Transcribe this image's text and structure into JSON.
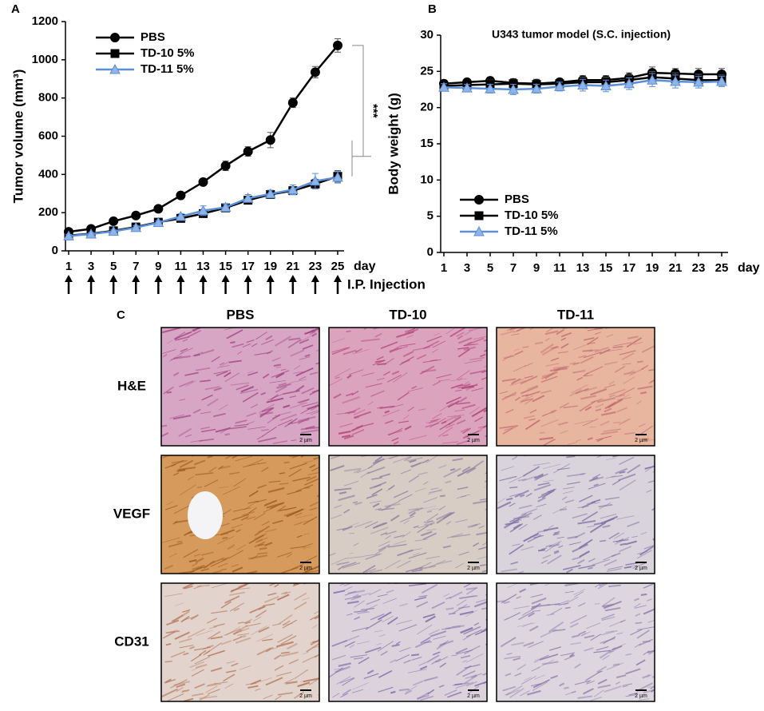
{
  "chart_data": [
    {
      "type": "line",
      "panel_label": "A",
      "ylabel": "Tumor volume (mm³)",
      "xlabel": "day",
      "x": [
        1,
        3,
        5,
        7,
        9,
        11,
        13,
        15,
        17,
        19,
        21,
        23,
        25
      ],
      "xlim": [
        1,
        25
      ],
      "xticks": [
        1,
        3,
        5,
        7,
        9,
        11,
        13,
        15,
        17,
        19,
        21,
        23,
        25
      ],
      "ylim": [
        0,
        1200
      ],
      "yticks": [
        0,
        200,
        400,
        600,
        800,
        1000,
        1200
      ],
      "legend": "upper left",
      "series": [
        {
          "name": "PBS",
          "color": "#000000",
          "marker": "circle",
          "values": [
            100,
            115,
            155,
            185,
            220,
            290,
            360,
            445,
            520,
            580,
            775,
            935,
            1075
          ],
          "errors": [
            10,
            10,
            12,
            12,
            12,
            18,
            15,
            25,
            25,
            40,
            25,
            30,
            35
          ]
        },
        {
          "name": "TD-10 5%",
          "color": "#000000",
          "marker": "square",
          "values": [
            80,
            90,
            105,
            125,
            150,
            170,
            195,
            225,
            265,
            295,
            315,
            350,
            390
          ],
          "errors": [
            8,
            8,
            8,
            10,
            10,
            12,
            15,
            15,
            18,
            20,
            20,
            25,
            30
          ]
        },
        {
          "name": "TD-11 5%",
          "color": "#5b8fd6",
          "marker": "triangle",
          "values": [
            78,
            88,
            102,
            122,
            148,
            180,
            210,
            228,
            275,
            298,
            320,
            365,
            385
          ],
          "errors": [
            8,
            8,
            8,
            10,
            10,
            15,
            25,
            15,
            20,
            20,
            25,
            40,
            30
          ]
        }
      ],
      "annotation": "***",
      "injection_label": "I.P. Injection"
    },
    {
      "type": "line",
      "panel_label": "B",
      "title": "U343 tumor model (S.C. injection)",
      "ylabel": "Body weight (g)",
      "xlabel": "day",
      "x": [
        1,
        3,
        5,
        7,
        9,
        11,
        13,
        15,
        17,
        19,
        21,
        23,
        25
      ],
      "xlim": [
        1,
        25
      ],
      "xticks": [
        1,
        3,
        5,
        7,
        9,
        11,
        13,
        15,
        17,
        19,
        21,
        23,
        25
      ],
      "ylim": [
        0,
        30
      ],
      "yticks": [
        0,
        5,
        10,
        15,
        20,
        25,
        30
      ],
      "legend": "lower left",
      "series": [
        {
          "name": "PBS",
          "color": "#000000",
          "marker": "circle",
          "values": [
            23.3,
            23.5,
            23.7,
            23.4,
            23.3,
            23.5,
            23.8,
            23.8,
            24.1,
            24.8,
            24.7,
            24.6,
            24.6
          ],
          "errors": [
            0.5,
            0.4,
            0.5,
            0.6,
            0.6,
            0.5,
            0.6,
            0.6,
            0.7,
            0.8,
            0.7,
            0.8,
            0.8
          ]
        },
        {
          "name": "TD-10 5%",
          "color": "#000000",
          "marker": "square",
          "values": [
            23.0,
            23.1,
            23.2,
            23.3,
            23.2,
            23.3,
            23.5,
            23.5,
            23.8,
            24.2,
            24.0,
            23.8,
            23.8
          ],
          "errors": [
            0.5,
            0.5,
            0.6,
            0.6,
            0.6,
            0.5,
            0.7,
            0.7,
            0.7,
            0.8,
            0.8,
            0.8,
            0.7
          ]
        },
        {
          "name": "TD-11 5%",
          "color": "#5b8fd6",
          "marker": "triangle",
          "values": [
            22.8,
            22.7,
            22.6,
            22.5,
            22.6,
            22.9,
            23.1,
            23.0,
            23.3,
            23.8,
            23.6,
            23.5,
            23.6
          ],
          "errors": [
            0.5,
            0.5,
            0.6,
            0.7,
            0.6,
            0.6,
            0.8,
            0.8,
            0.8,
            0.9,
            0.9,
            0.8,
            0.7
          ]
        }
      ]
    }
  ],
  "histology": {
    "panel_label": "C",
    "columns": [
      "PBS",
      "TD-10",
      "TD-11"
    ],
    "rows": [
      "H&E",
      "VEGF",
      "CD31"
    ],
    "scale_bar": "2 µm"
  }
}
